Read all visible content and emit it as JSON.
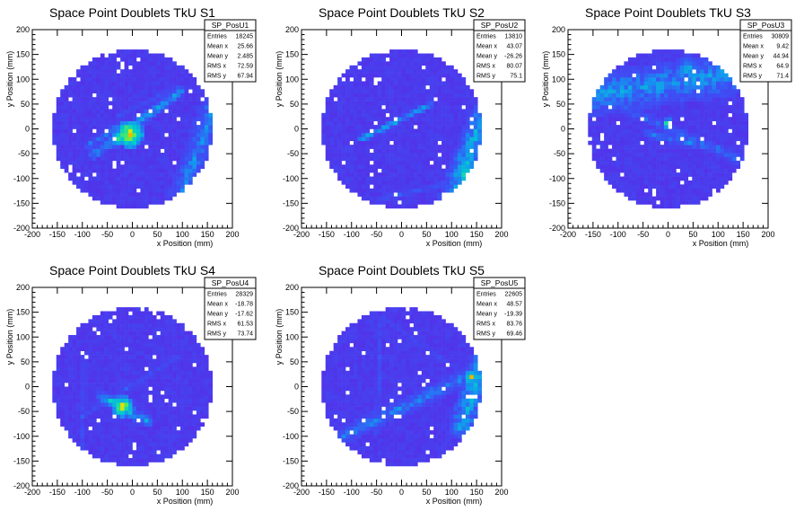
{
  "chart_data": [
    {
      "type": "heatmap",
      "title": "Space Point Doublets TkU S1",
      "xlabel": "x Position (mm)",
      "ylabel": "y Position (mm)",
      "xlim": [
        -200,
        200
      ],
      "ylim": [
        -200,
        200
      ],
      "xticks": [
        -200,
        -150,
        -100,
        -50,
        0,
        50,
        100,
        150,
        200
      ],
      "yticks": [
        -200,
        -150,
        -100,
        -50,
        0,
        50,
        100,
        150,
        200
      ],
      "stats": {
        "name": "SP_PosU1",
        "rows": [
          {
            "label": "Entries",
            "value": "18245"
          },
          {
            "label": "Mean x",
            "value": "25.66"
          },
          {
            "label": "Mean y",
            "value": "2.485"
          },
          {
            "label": "RMS x",
            "value": "72.59"
          },
          {
            "label": "RMS y",
            "value": "67.94"
          }
        ]
      },
      "features": [
        {
          "kind": "band",
          "p1": [
            -75,
            -50
          ],
          "p2": [
            95,
            75
          ],
          "width": 12,
          "level": 0.45
        },
        {
          "kind": "band",
          "p1": [
            -90,
            -35
          ],
          "p2": [
            -30,
            5
          ],
          "width": 8,
          "level": 0.4
        },
        {
          "kind": "band",
          "p1": [
            100,
            -130
          ],
          "p2": [
            160,
            40
          ],
          "width": 28,
          "level": 0.42
        },
        {
          "kind": "band",
          "p1": [
            -30,
            25
          ],
          "p2": [
            90,
            85
          ],
          "width": 6,
          "level": 0.3
        },
        {
          "kind": "blob",
          "c": [
            -5,
            -10
          ],
          "r": 30,
          "level": 0.95
        },
        {
          "kind": "blob",
          "c": [
            -30,
            -20
          ],
          "r": 18,
          "level": 0.8
        }
      ]
    },
    {
      "type": "heatmap",
      "title": "Space Point Doublets TkU S2",
      "xlabel": "x Position (mm)",
      "ylabel": "y Position (mm)",
      "xlim": [
        -200,
        200
      ],
      "ylim": [
        -200,
        200
      ],
      "xticks": [
        -200,
        -150,
        -100,
        -50,
        0,
        50,
        100,
        150,
        200
      ],
      "yticks": [
        -200,
        -150,
        -100,
        -50,
        0,
        50,
        100,
        150,
        200
      ],
      "stats": {
        "name": "SP_PosU2",
        "rows": [
          {
            "label": "Entries",
            "value": "13810"
          },
          {
            "label": "Mean x",
            "value": "43.07"
          },
          {
            "label": "Mean y",
            "value": "-26.26"
          },
          {
            "label": "RMS x",
            "value": "80.07"
          },
          {
            "label": "RMS y",
            "value": "75.1"
          }
        ]
      },
      "features": [
        {
          "kind": "band",
          "p1": [
            -80,
            -20
          ],
          "p2": [
            60,
            50
          ],
          "width": 7,
          "level": 0.5
        },
        {
          "kind": "band",
          "p1": [
            100,
            -150
          ],
          "p2": [
            160,
            20
          ],
          "width": 30,
          "level": 0.5
        },
        {
          "kind": "band",
          "p1": [
            -40,
            -140
          ],
          "p2": [
            130,
            -100
          ],
          "width": 8,
          "level": 0.3
        },
        {
          "kind": "blob",
          "c": [
            130,
            -90
          ],
          "r": 30,
          "level": 0.7
        },
        {
          "kind": "blob",
          "c": [
            125,
            -105
          ],
          "r": 8,
          "level": 1.0
        }
      ]
    },
    {
      "type": "heatmap",
      "title": "Space Point Doublets TkU S3",
      "xlabel": "x Position (mm)",
      "ylabel": "y Position (mm)",
      "xlim": [
        -200,
        200
      ],
      "ylim": [
        -200,
        200
      ],
      "xticks": [
        -200,
        -150,
        -100,
        -50,
        0,
        50,
        100,
        150,
        200
      ],
      "yticks": [
        -200,
        -150,
        -100,
        -50,
        0,
        50,
        100,
        150,
        200
      ],
      "stats": {
        "name": "SP_PosU3",
        "rows": [
          {
            "label": "Entries",
            "value": "30809"
          },
          {
            "label": "Mean x",
            "value": "9.42"
          },
          {
            "label": "Mean y",
            "value": "44.94"
          },
          {
            "label": "RMS x",
            "value": "64.9"
          },
          {
            "label": "RMS y",
            "value": "71.4"
          }
        ]
      },
      "features": [
        {
          "kind": "band",
          "p1": [
            -150,
            70
          ],
          "p2": [
            120,
            110
          ],
          "width": 45,
          "level": 0.45
        },
        {
          "kind": "band",
          "p1": [
            -130,
            60
          ],
          "p2": [
            140,
            -60
          ],
          "width": 12,
          "level": 0.35
        },
        {
          "kind": "band",
          "p1": [
            -40,
            -10
          ],
          "p2": [
            100,
            -40
          ],
          "width": 10,
          "level": 0.4
        },
        {
          "kind": "blob",
          "c": [
            0,
            10
          ],
          "r": 12,
          "level": 0.85
        },
        {
          "kind": "blob",
          "c": [
            40,
            120
          ],
          "r": 30,
          "level": 0.55
        }
      ]
    },
    {
      "type": "heatmap",
      "title": "Space Point Doublets TkU S4",
      "xlabel": "x Position (mm)",
      "ylabel": "y Position (mm)",
      "xlim": [
        -200,
        200
      ],
      "ylim": [
        -200,
        200
      ],
      "xticks": [
        -200,
        -150,
        -100,
        -50,
        0,
        50,
        100,
        150,
        200
      ],
      "yticks": [
        -200,
        -150,
        -100,
        -50,
        0,
        50,
        100,
        150,
        200
      ],
      "stats": {
        "name": "SP_PosU4",
        "rows": [
          {
            "label": "Entries",
            "value": "28329"
          },
          {
            "label": "Mean x",
            "value": "-18.78"
          },
          {
            "label": "Mean y",
            "value": "-17.62"
          },
          {
            "label": "RMS x",
            "value": "61.53"
          },
          {
            "label": "RMS y",
            "value": "73.74"
          }
        ]
      },
      "features": [
        {
          "kind": "band",
          "p1": [
            -60,
            -20
          ],
          "p2": [
            30,
            -70
          ],
          "width": 12,
          "level": 0.5
        },
        {
          "kind": "band",
          "p1": [
            -100,
            -60
          ],
          "p2": [
            90,
            60
          ],
          "width": 6,
          "level": 0.3
        },
        {
          "kind": "band",
          "p1": [
            -100,
            -140
          ],
          "p2": [
            -95,
            70
          ],
          "width": 6,
          "level": 0.28
        },
        {
          "kind": "blob",
          "c": [
            -20,
            -40
          ],
          "r": 22,
          "level": 0.95
        },
        {
          "kind": "blob",
          "c": [
            -40,
            -30
          ],
          "r": 12,
          "level": 0.75
        }
      ]
    },
    {
      "type": "heatmap",
      "title": "Space Point Doublets TkU S5",
      "xlabel": "x Position (mm)",
      "ylabel": "y Position (mm)",
      "xlim": [
        -200,
        200
      ],
      "ylim": [
        -200,
        200
      ],
      "xticks": [
        -200,
        -150,
        -100,
        -50,
        0,
        50,
        100,
        150,
        200
      ],
      "yticks": [
        -200,
        -150,
        -100,
        -50,
        0,
        50,
        100,
        150,
        200
      ],
      "stats": {
        "name": "SP_PosU5",
        "rows": [
          {
            "label": "Entries",
            "value": "22605"
          },
          {
            "label": "Mean x",
            "value": "48.57"
          },
          {
            "label": "Mean y",
            "value": "-19.39"
          },
          {
            "label": "RMS x",
            "value": "83.76"
          },
          {
            "label": "RMS y",
            "value": "69.46"
          }
        ]
      },
      "features": [
        {
          "kind": "band",
          "p1": [
            -120,
            -100
          ],
          "p2": [
            150,
            30
          ],
          "width": 18,
          "level": 0.4
        },
        {
          "kind": "band",
          "p1": [
            120,
            -80
          ],
          "p2": [
            160,
            50
          ],
          "width": 25,
          "level": 0.5
        },
        {
          "kind": "band",
          "p1": [
            -50,
            -90
          ],
          "p2": [
            -40,
            140
          ],
          "width": 6,
          "level": 0.3
        },
        {
          "kind": "band",
          "p1": [
            -40,
            140
          ],
          "p2": [
            120,
            30
          ],
          "width": 6,
          "level": 0.25
        },
        {
          "kind": "blob",
          "c": [
            140,
            20
          ],
          "r": 15,
          "level": 0.9
        }
      ]
    }
  ]
}
